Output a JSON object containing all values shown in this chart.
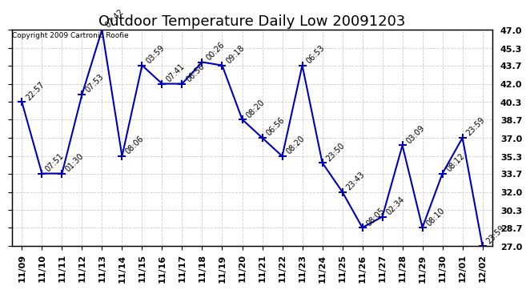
{
  "title": "Outdoor Temperature Daily Low 20091203",
  "copyright": "Copyright 2009 Cartronic Roofie",
  "x_labels": [
    "11/09",
    "11/10",
    "11/11",
    "11/12",
    "11/13",
    "11/14",
    "11/15",
    "11/16",
    "11/17",
    "11/18",
    "11/19",
    "11/20",
    "11/21",
    "11/22",
    "11/23",
    "11/24",
    "11/25",
    "11/26",
    "11/27",
    "11/28",
    "11/29",
    "11/30",
    "12/01",
    "12/02"
  ],
  "y_values": [
    40.3,
    33.7,
    33.7,
    41.0,
    47.0,
    35.3,
    43.7,
    42.0,
    42.0,
    44.0,
    43.7,
    38.7,
    37.0,
    35.3,
    43.7,
    34.7,
    32.0,
    28.7,
    29.7,
    36.3,
    28.7,
    33.7,
    37.0,
    27.0
  ],
  "point_labels": [
    "22:57",
    "07:51",
    "01:30",
    "07:53",
    "07:42",
    "08:06",
    "03:59",
    "07:41",
    "06:56",
    "00:26",
    "09:18",
    "08:20",
    "06:56",
    "08:20",
    "06:53",
    "23:50",
    "23:43",
    "08:05",
    "02:34",
    "03:09",
    "08:10",
    "08:12",
    "23:59",
    "23:59"
  ],
  "line_color": "#0000bb",
  "marker_color": "#0000bb",
  "bg_color": "#ffffff",
  "grid_color": "#cccccc",
  "ylim_min": 27.0,
  "ylim_max": 47.0,
  "yticks": [
    27.0,
    28.7,
    30.3,
    32.0,
    33.7,
    35.3,
    37.0,
    38.7,
    40.3,
    42.0,
    43.7,
    45.3,
    47.0
  ],
  "title_fontsize": 13,
  "label_fontsize": 7,
  "tick_fontsize": 8,
  "copyright_fontsize": 6.5
}
